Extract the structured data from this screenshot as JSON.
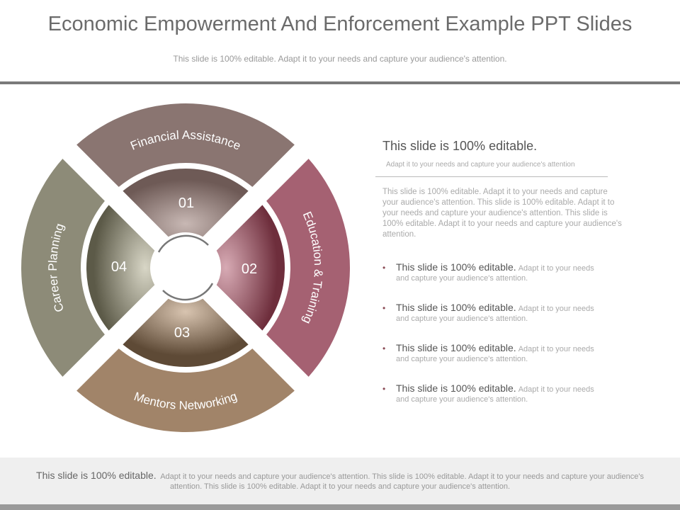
{
  "header": {
    "title": "Economic Empowerment And Enforcement Example PPT Slides",
    "subtitle": "This slide is 100% editable.  Adapt it to your needs and capture your audience's attention."
  },
  "diagram": {
    "segments": [
      {
        "label": "Financial Assistance",
        "number": "01"
      },
      {
        "label": "Education & Training",
        "number": "02"
      },
      {
        "label": "Mentors Networking",
        "number": "03"
      },
      {
        "label": "Career Planning",
        "number": "04"
      }
    ]
  },
  "panel": {
    "heading": "This slide is 100% editable.",
    "subheading": "Adapt it to your needs and capture your audience's attention",
    "body": "This slide is 100% editable. Adapt it to your needs and capture your audience's attention. This slide is 100% editable. Adapt it to your needs and capture your audience's attention. This slide is 100% editable. Adapt it to your needs and capture your audience's attention.",
    "bullets": [
      {
        "bold": "This slide is 100% editable.",
        "text": "Adapt it to your needs and capture your audience's attention."
      },
      {
        "bold": "This slide is 100% editable.",
        "text": "Adapt it to your needs and capture your audience's attention."
      },
      {
        "bold": "This slide is 100% editable.",
        "text": "Adapt it to your needs and capture your audience's attention."
      },
      {
        "bold": "This slide is 100% editable.",
        "text": "Adapt it to your needs and capture your audience's attention."
      }
    ]
  },
  "footer": {
    "bold": "This slide is 100% editable.",
    "text": "Adapt it to your needs and capture your audience's attention. This slide is 100% editable. Adapt it to your needs and capture your audience's attention. This slide is 100% editable. Adapt it to your needs and capture your audience's attention."
  }
}
